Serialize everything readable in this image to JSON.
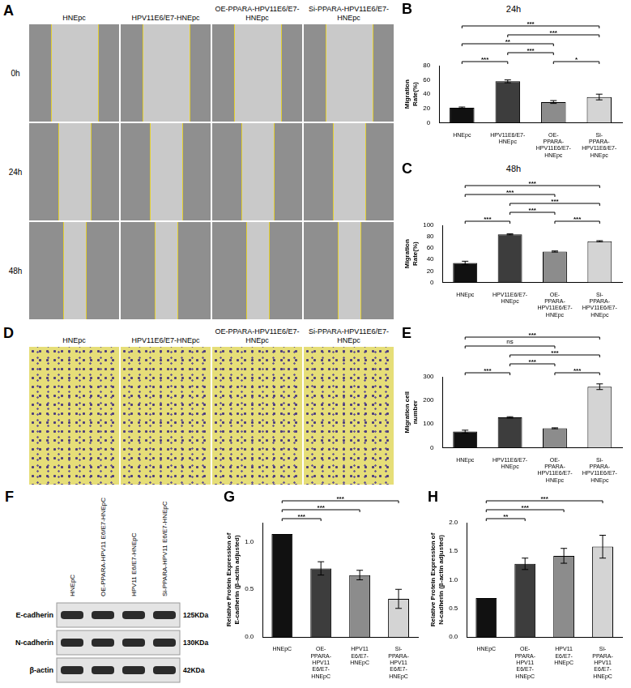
{
  "figure": {
    "A": {
      "panel": "A",
      "columns": [
        "HNEpc",
        "HPV11E6/E7-HNEpc",
        "OE-PPARA-HPV11E6/E7-HNEpc",
        "Si-PPARA-HPV11E6/E7-HNEpc"
      ],
      "rows": [
        "0h",
        "24h",
        "48h"
      ]
    },
    "D": {
      "panel": "D",
      "columns": [
        "HNEpc",
        "HPV11E6/E7-HNEpc",
        "OE-PPARA-HPV11E6/E7-HNEpc",
        "Si-PPARA-HPV11E6/E7-HNEpc"
      ]
    },
    "F": {
      "panel": "F",
      "lanes": [
        "HNEpC",
        "OE-PPARA-HPV11 E6/E7-HNEpC",
        "HPV11 E6/E7-HNEpC",
        "Si-PPARA-HPV11 E6/E7-HNEpC"
      ],
      "bands": [
        {
          "protein": "E-cadherin",
          "size": "125KDa"
        },
        {
          "protein": "N-cadherin",
          "size": "130KDa"
        },
        {
          "protein": "β-actin",
          "size": "42KDa"
        }
      ]
    }
  },
  "chart_data": [
    {
      "panel": "B",
      "type": "bar",
      "title": "24h",
      "y_label": "Migration Rate(%)",
      "categories": [
        "HNEpc",
        "HPV11E6/E7-HNEpc",
        "OE-PPARA-HPV11E6/E7-HNEpc",
        "Si-PPARA-HPV11E6/E7-HNEpc"
      ],
      "values": [
        21,
        58,
        29,
        36
      ],
      "errors": [
        1,
        2,
        2,
        4
      ],
      "colors": [
        "#111111",
        "#3d3d3d",
        "#8c8c8c",
        "#d4d4d4"
      ],
      "ylim": [
        0,
        80
      ],
      "yticks": [
        0,
        20,
        40,
        60,
        80
      ],
      "grid": false,
      "comparisons": [
        {
          "from": "HNEpc",
          "to": "Si-PPARA-HPV11E6/E7-HNEpc",
          "label": "***"
        },
        {
          "from": "HNEpc",
          "to": "OE-PPARA-HPV11E6/E7-HNEpc",
          "label": "**"
        },
        {
          "from": "HPV11E6/E7-HNEpc",
          "to": "Si-PPARA-HPV11E6/E7-HNEpc",
          "label": "***"
        },
        {
          "from": "HNEpc",
          "to": "HPV11E6/E7-HNEpc",
          "label": "***"
        },
        {
          "from": "HPV11E6/E7-HNEpc",
          "to": "OE-PPARA-HPV11E6/E7-HNEpc",
          "label": "***"
        },
        {
          "from": "OE-PPARA-HPV11E6/E7-HNEpc",
          "to": "Si-PPARA-HPV11E6/E7-HNEpc",
          "label": "*"
        }
      ]
    },
    {
      "panel": "C",
      "type": "bar",
      "title": "48h",
      "y_label": "Migration Rate(%)",
      "categories": [
        "HNEpc",
        "HPV11E6/E7-HNEpc",
        "OE-PPARA-HPV11E6/E7-HNEpc",
        "Si-PPARA-HPV11E6/E7-HNEpc"
      ],
      "values": [
        34,
        84,
        54,
        72
      ],
      "errors": [
        3,
        1,
        1,
        1
      ],
      "colors": [
        "#111111",
        "#3d3d3d",
        "#8c8c8c",
        "#d4d4d4"
      ],
      "ylim": [
        0,
        100
      ],
      "yticks": [
        0,
        20,
        40,
        60,
        80,
        100
      ],
      "grid": false,
      "comparisons": [
        {
          "from": "HNEpc",
          "to": "Si-PPARA-HPV11E6/E7-HNEpc",
          "label": "***"
        },
        {
          "from": "HPV11E6/E7-HNEpc",
          "to": "Si-PPARA-HPV11E6/E7-HNEpc",
          "label": "***"
        },
        {
          "from": "HNEpc",
          "to": "OE-PPARA-HPV11E6/E7-HNEpc",
          "label": "***"
        },
        {
          "from": "HNEpc",
          "to": "HPV11E6/E7-HNEpc",
          "label": "***"
        },
        {
          "from": "HPV11E6/E7-HNEpc",
          "to": "OE-PPARA-HPV11E6/E7-HNEpc",
          "label": "***"
        },
        {
          "from": "OE-PPARA-HPV11E6/E7-HNEpc",
          "to": "Si-PPARA-HPV11E6/E7-HNEpc",
          "label": "***"
        }
      ]
    },
    {
      "panel": "E",
      "type": "bar",
      "y_label": "Migration cell number",
      "categories": [
        "HNEpc",
        "HPV11E6/E7-HNEpc",
        "OE-PPARA-HPV11E6/E7-HNEpc",
        "Si-PPARA-HPV11E6/E7-HNEpc"
      ],
      "values": [
        68,
        128,
        82,
        258
      ],
      "errors": [
        6,
        3,
        2,
        12
      ],
      "colors": [
        "#111111",
        "#3d3d3d",
        "#8c8c8c",
        "#d4d4d4"
      ],
      "ylim": [
        0,
        300
      ],
      "yticks": [
        0,
        100,
        200,
        300
      ],
      "grid": false,
      "comparisons": [
        {
          "from": "HNEpc",
          "to": "Si-PPARA-HPV11E6/E7-HNEpc",
          "label": "***"
        },
        {
          "from": "HPV11E6/E7-HNEpc",
          "to": "Si-PPARA-HPV11E6/E7-HNEpc",
          "label": "***"
        },
        {
          "from": "HNEpc",
          "to": "HPV11E6/E7-HNEpc",
          "label": "***"
        },
        {
          "from": "HNEpc",
          "to": "OE-PPARA-HPV11E6/E7-HNEpc",
          "label": "ns"
        },
        {
          "from": "HPV11E6/E7-HNEpc",
          "to": "OE-PPARA-HPV11E6/E7-HNEpc",
          "label": "***"
        },
        {
          "from": "OE-PPARA-HPV11E6/E7-HNEpc",
          "to": "Si-PPARA-HPV11E6/E7-HNEpc",
          "label": "***"
        }
      ]
    },
    {
      "panel": "G",
      "type": "bar",
      "y_label": "Relative Protein Expression of E-cadherin (β-actin adjusted)",
      "categories": [
        "HNEpC",
        "OE-PPARA-HPV11 E6/E7-HNEpC",
        "HPV11 E6/E7-HNEpC",
        "Si-PPARA-HPV11 E6/E7-HNEpC"
      ],
      "values": [
        1.08,
        0.72,
        0.65,
        0.4
      ],
      "errors": [
        0,
        0.07,
        0.05,
        0.1
      ],
      "colors": [
        "#111111",
        "#3d3d3d",
        "#8c8c8c",
        "#d4d4d4"
      ],
      "ylim": [
        0,
        1.2
      ],
      "yticks": [
        {
          "value": 0,
          "label": "0.0"
        },
        {
          "value": 0.5,
          "label": "0.5"
        },
        {
          "value": 1,
          "label": "1.0"
        }
      ],
      "grid": false,
      "comparisons": [
        {
          "from": "HNEpC",
          "to": "OE-PPARA-HPV11 E6/E7-HNEpC",
          "label": "***"
        },
        {
          "from": "HNEpC",
          "to": "HPV11 E6/E7-HNEpC",
          "label": "***"
        },
        {
          "from": "HNEpC",
          "to": "Si-PPARA-HPV11 E6/E7-HNEpC",
          "label": "***"
        }
      ]
    },
    {
      "panel": "H",
      "type": "bar",
      "y_label": "Relative Protein Expression of N-cadherin (β-actin adjusted)",
      "categories": [
        "HNEpC",
        "OE-PPARA-HPV11 E6/E7-HNEpC",
        "HPV11 E6/E7-HNEpC",
        "Si-PPARA-HPV11 E6/E7-HNEpC"
      ],
      "values": [
        0.68,
        1.28,
        1.42,
        1.58
      ],
      "errors": [
        0,
        0.1,
        0.13,
        0.2
      ],
      "colors": [
        "#111111",
        "#3d3d3d",
        "#8c8c8c",
        "#d4d4d4"
      ],
      "ylim": [
        0,
        2
      ],
      "yticks": [
        {
          "value": 0,
          "label": "0.0"
        },
        {
          "value": 0.5,
          "label": "0.5"
        },
        {
          "value": 1,
          "label": "1.0"
        },
        {
          "value": 1.5,
          "label": "1.5"
        },
        {
          "value": 2,
          "label": "2.0"
        }
      ],
      "grid": false,
      "comparisons": [
        {
          "from": "HNEpC",
          "to": "OE-PPARA-HPV11 E6/E7-HNEpC",
          "label": "**"
        },
        {
          "from": "HNEpC",
          "to": "HPV11 E6/E7-HNEpC",
          "label": "***"
        },
        {
          "from": "HNEpC",
          "to": "Si-PPARA-HPV11 E6/E7-HNEpC",
          "label": "***"
        }
      ]
    }
  ]
}
